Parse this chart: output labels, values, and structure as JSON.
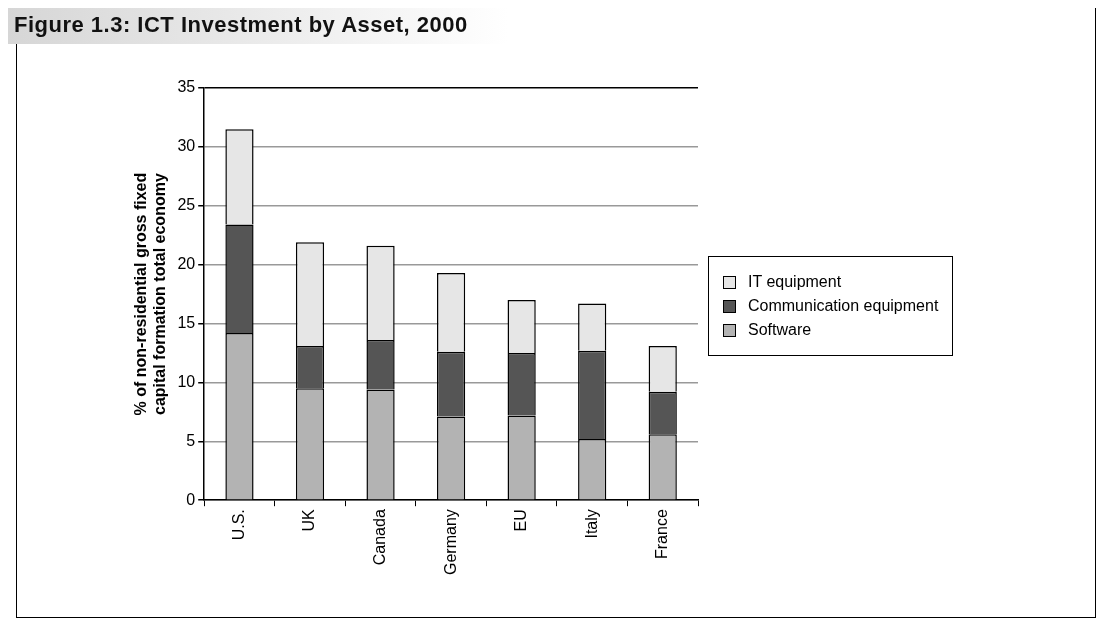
{
  "chart_data": {
    "type": "bar",
    "title": "Figure 1.3: ICT Investment by Asset, 2000",
    "ylabel": "% of non-residential gross fixed capital formation total economy",
    "categories": [
      "U.S.",
      "UK",
      "Canada",
      "Germany",
      "EU",
      "Italy",
      "France"
    ],
    "stacked": true,
    "series": [
      {
        "name": "Software",
        "color": "#b3b3b3",
        "values": [
          14.2,
          9.5,
          9.4,
          7.1,
          7.2,
          5.2,
          5.6
        ]
      },
      {
        "name": "Communication equipment",
        "color": "#555555",
        "values": [
          9.2,
          3.6,
          4.2,
          5.5,
          5.3,
          7.5,
          3.6
        ]
      },
      {
        "name": "IT equipment",
        "color": "#e6e6e6",
        "values": [
          8.1,
          8.8,
          8.0,
          6.7,
          4.5,
          4.0,
          3.9
        ]
      }
    ],
    "ylim": [
      0,
      35
    ],
    "yticks": [
      0,
      5,
      10,
      15,
      20,
      25,
      30,
      35
    ],
    "grid": "y",
    "legend": "right"
  }
}
